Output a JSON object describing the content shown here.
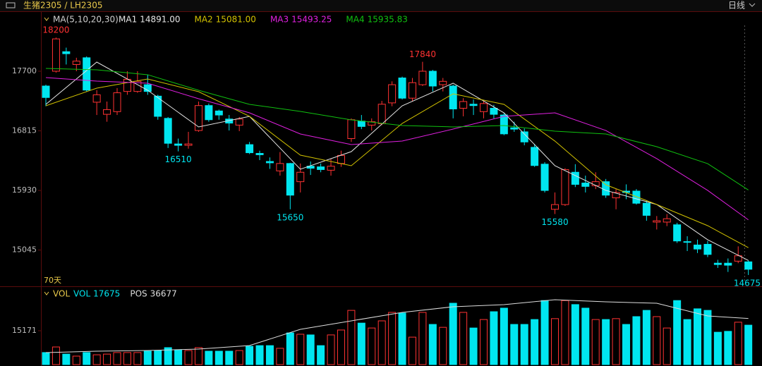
{
  "header": {
    "title": "生猪2305 / LH2305",
    "period": "日线"
  },
  "chart_data": [
    {
      "type": "candlestick",
      "indicator_label": "MA(5,10,20,30)",
      "days_label": "70天",
      "up_color": "#ff3232",
      "down_color": "#00e6f0",
      "ylim": [
        14517,
        18548
      ],
      "yticks": [
        17700,
        16815,
        15930,
        15045
      ],
      "candles": {
        "open": [
          17480,
          17700,
          17990,
          17800,
          17900,
          17240,
          17060,
          17100,
          17400,
          17400,
          17500,
          17330,
          17000,
          16620,
          16600,
          16820,
          17190,
          17110,
          16990,
          16900,
          16610,
          16480,
          16360,
          16220,
          16330,
          16060,
          16290,
          16280,
          16230,
          16330,
          16700,
          16960,
          16900,
          16920,
          17230,
          17600,
          17300,
          17500,
          17700,
          17500,
          17480,
          17150,
          17210,
          17100,
          17150,
          17050,
          16860,
          16800,
          16570,
          16320,
          15650,
          15720,
          16200,
          16040,
          16000,
          16060,
          15820,
          15920,
          15920,
          15740,
          15460,
          15460,
          15420,
          15170,
          15120,
          15130,
          14850,
          14850,
          14880,
          14870
        ],
        "high": [
          17500,
          18200,
          18050,
          17900,
          17920,
          17420,
          17250,
          17450,
          17700,
          17700,
          17650,
          17350,
          17020,
          16700,
          16800,
          17250,
          17220,
          17130,
          17050,
          17020,
          16650,
          16520,
          16420,
          16500,
          16340,
          16330,
          16360,
          16330,
          16400,
          16520,
          17000,
          17050,
          17000,
          17260,
          17550,
          17620,
          17600,
          17840,
          17720,
          17600,
          17500,
          17300,
          17280,
          17260,
          17200,
          17080,
          16950,
          16850,
          16620,
          16350,
          15900,
          16260,
          16320,
          16150,
          16200,
          16100,
          15950,
          16020,
          15950,
          15780,
          15550,
          15580,
          15450,
          15250,
          15200,
          15180,
          14900,
          14920,
          15100,
          14890
        ],
        "low": [
          17180,
          17680,
          17800,
          17700,
          17400,
          17050,
          16950,
          17050,
          17350,
          17380,
          17350,
          16980,
          16560,
          16510,
          16550,
          16800,
          16950,
          16980,
          16820,
          16810,
          16470,
          16380,
          16250,
          16150,
          15650,
          15900,
          16160,
          16200,
          16150,
          16280,
          16650,
          16840,
          16820,
          16900,
          17180,
          17280,
          17250,
          17480,
          17400,
          17400,
          17000,
          17030,
          17050,
          17000,
          17000,
          16750,
          16800,
          16600,
          16280,
          15900,
          15580,
          15700,
          15980,
          15900,
          15950,
          15820,
          15650,
          15800,
          15720,
          15480,
          15350,
          15400,
          15150,
          15030,
          15000,
          14940,
          14780,
          14720,
          14850,
          14675
        ],
        "close": [
          17310,
          18180,
          17960,
          17850,
          17420,
          17350,
          17130,
          17380,
          17580,
          17550,
          17400,
          17030,
          16630,
          16600,
          16620,
          17190,
          16980,
          17050,
          16930,
          16990,
          16490,
          16460,
          16340,
          16330,
          15860,
          16200,
          16260,
          16240,
          16290,
          16450,
          16980,
          16880,
          16950,
          17210,
          17500,
          17300,
          17530,
          17700,
          17480,
          17550,
          17140,
          17250,
          17190,
          17220,
          17060,
          16770,
          16840,
          16650,
          16300,
          15930,
          15720,
          16240,
          16020,
          15990,
          16060,
          15860,
          15900,
          15900,
          15740,
          15560,
          15480,
          15510,
          15180,
          15160,
          15060,
          14980,
          14830,
          14820,
          14960,
          14760
        ]
      },
      "series": [
        {
          "name": "MA1",
          "legend_value": "14891.00",
          "color": "#e6e6e6",
          "x": [
            0,
            5,
            10,
            15,
            20,
            25,
            30,
            35,
            40,
            45,
            50,
            55,
            60,
            65,
            69
          ],
          "values": [
            17208,
            17836,
            17417,
            16873,
            17030,
            16245,
            16506,
            17187,
            17522,
            17082,
            16297,
            15931,
            15721,
            15198,
            14891
          ]
        },
        {
          "name": "MA2",
          "legend_value": "15081.00",
          "color": "#d2c200",
          "x": [
            0,
            5,
            10,
            15,
            20,
            25,
            30,
            35,
            40,
            45,
            50,
            55,
            60,
            65,
            69
          ],
          "values": [
            17187,
            17449,
            17585,
            17396,
            17030,
            16454,
            16297,
            16925,
            17365,
            17208,
            16663,
            16014,
            15721,
            15407,
            15081
          ]
        },
        {
          "name": "MA3",
          "legend_value": "15493.25",
          "color": "#e020e0",
          "x": [
            0,
            5,
            10,
            15,
            20,
            25,
            30,
            35,
            40,
            45,
            50,
            55,
            60,
            65,
            69
          ],
          "values": [
            17606,
            17553,
            17522,
            17292,
            17082,
            16768,
            16611,
            16663,
            16841,
            17030,
            17082,
            16820,
            16402,
            15931,
            15493
          ]
        },
        {
          "name": "MA4",
          "legend_value": "15935.83",
          "color": "#10c010",
          "x": [
            0,
            5,
            10,
            15,
            20,
            25,
            30,
            35,
            40,
            45,
            50,
            55,
            60,
            65,
            69
          ],
          "values": [
            17742,
            17721,
            17648,
            17417,
            17208,
            17103,
            16978,
            16894,
            16873,
            16894,
            16810,
            16768,
            16580,
            16328,
            15936
          ]
        }
      ],
      "annotations": [
        {
          "candle": 1,
          "at": "high"
        },
        {
          "candle": 37,
          "at": "high"
        },
        {
          "candle": 13,
          "at": "low"
        },
        {
          "candle": 24,
          "at": "low"
        },
        {
          "candle": 50,
          "at": "low"
        },
        {
          "candle": 69,
          "at": "low"
        }
      ]
    },
    {
      "type": "volume",
      "indicator_label": "VOL",
      "ylim": [
        0,
        33820
      ],
      "yticks": [
        15171
      ],
      "y2lim": [
        0,
        60000
      ],
      "series": [
        {
          "name": "VOL",
          "color": "#00e6f0",
          "values": [
            5400,
            7900,
            4700,
            3800,
            5400,
            4400,
            4700,
            5400,
            5400,
            5400,
            6000,
            6300,
            7600,
            6600,
            6300,
            7600,
            6000,
            6000,
            6000,
            6300,
            8200,
            8500,
            8500,
            7300,
            14200,
            13600,
            13300,
            8500,
            13300,
            15500,
            24300,
            18600,
            16400,
            19600,
            23400,
            23100,
            12300,
            23400,
            18000,
            16700,
            27500,
            23400,
            16400,
            20200,
            23700,
            25300,
            18000,
            18000,
            20200,
            28700,
            20600,
            28700,
            26900,
            25300,
            20200,
            20200,
            20600,
            18000,
            21500,
            24300,
            21500,
            16400,
            28700,
            20200,
            25000,
            24300,
            14500,
            14900,
            19000,
            17675
          ]
        },
        {
          "name": "POS",
          "axis": "y2",
          "color": "#dddddd",
          "x": [
            0,
            5,
            10,
            15,
            20,
            25,
            30,
            35,
            40,
            45,
            50,
            55,
            60,
            65,
            69
          ],
          "values": [
            9530,
            10650,
            11210,
            12340,
            15140,
            28040,
            34770,
            41500,
            45980,
            47660,
            51590,
            49910,
            48790,
            38690,
            36677
          ]
        }
      ]
    }
  ]
}
